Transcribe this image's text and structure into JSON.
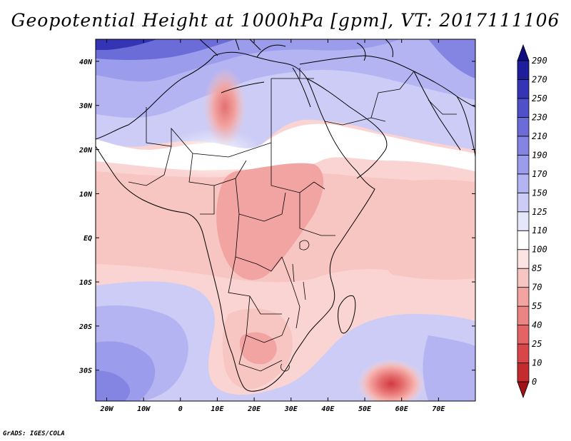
{
  "title": "Geopotential Height at 1000hPa [gpm], VT: 2017111106",
  "credit": "GrADS: IGES/COLA",
  "map": {
    "variable": "Geopotential Height",
    "level": "1000hPa",
    "units": "gpm",
    "valid_time": "2017111106",
    "lon_range": [
      -23,
      80
    ],
    "lat_range": [
      -37,
      45
    ],
    "x_ticks": [
      "20W",
      "10W",
      "0",
      "10E",
      "20E",
      "30E",
      "40E",
      "50E",
      "60E",
      "70E"
    ],
    "y_ticks": [
      "40N",
      "30N",
      "20N",
      "10N",
      "EQ",
      "10S",
      "20S",
      "30S"
    ]
  },
  "colorbar": {
    "levels": [
      "0",
      "10",
      "25",
      "40",
      "55",
      "70",
      "85",
      "100",
      "110",
      "125",
      "150",
      "170",
      "190",
      "210",
      "230",
      "250",
      "270",
      "290"
    ],
    "colors": [
      "#a01218",
      "#c42a2e",
      "#d9464a",
      "#e46466",
      "#ec8484",
      "#f2a4a2",
      "#f8c6c2",
      "#fce4e2",
      "#ffffff",
      "#e6e6fa",
      "#ccccf6",
      "#b4b4f2",
      "#9c9cec",
      "#8484e2",
      "#6c6cd8",
      "#5050c8",
      "#3434b4",
      "#1e1e9c",
      "#0e0e80"
    ]
  }
}
